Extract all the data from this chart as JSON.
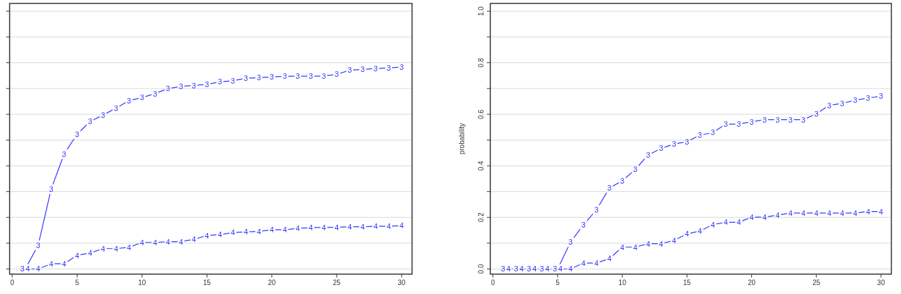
{
  "chart_data": [
    {
      "type": "line",
      "x": [
        1,
        2,
        3,
        4,
        5,
        6,
        7,
        8,
        9,
        10,
        11,
        12,
        13,
        14,
        15,
        16,
        17,
        18,
        19,
        20,
        21,
        22,
        23,
        24,
        25,
        26,
        27,
        28,
        29,
        30
      ],
      "xlim": [
        -0.2,
        30.8
      ],
      "xticks": [
        0,
        5,
        10,
        15,
        20,
        25,
        30
      ],
      "ylim": [
        -0.02,
        1.03
      ],
      "yticks": [
        {
          "value": 0,
          "label": null
        },
        {
          "value": 0.1,
          "label": null
        },
        {
          "value": 0.2,
          "label": null
        },
        {
          "value": 0.3,
          "label": null
        },
        {
          "value": 0.4,
          "label": null
        },
        {
          "value": 0.5,
          "label": null
        },
        {
          "value": 0.6,
          "label": null
        },
        {
          "value": 0.7,
          "label": null
        },
        {
          "value": 0.8,
          "label": null
        },
        {
          "value": 0.9,
          "label": null
        },
        {
          "value": 1,
          "label": null
        }
      ],
      "tick_labels": "x",
      "grid": "y",
      "marker": "none",
      "line_style": "solid",
      "series": [
        {
          "name": "3",
          "color": "#3333ff",
          "values": [
            0,
            0.092,
            0.31,
            0.446,
            0.523,
            0.572,
            0.597,
            0.624,
            0.653,
            0.665,
            0.68,
            0.7,
            0.708,
            0.712,
            0.716,
            0.726,
            0.73,
            0.74,
            0.742,
            0.745,
            0.747,
            0.748,
            0.748,
            0.748,
            0.755,
            0.771,
            0.774,
            0.778,
            0.78,
            0.783
          ]
        },
        {
          "name": "4",
          "color": "#3333ff",
          "values": [
            0,
            0,
            0.02,
            0.02,
            0.053,
            0.062,
            0.079,
            0.079,
            0.084,
            0.103,
            0.103,
            0.106,
            0.106,
            0.115,
            0.13,
            0.133,
            0.141,
            0.144,
            0.146,
            0.152,
            0.152,
            0.158,
            0.16,
            0.162,
            0.162,
            0.164,
            0.164,
            0.166,
            0.166,
            0.168
          ]
        }
      ]
    },
    {
      "type": "line",
      "ylabel": "probability",
      "x": [
        1,
        2,
        3,
        4,
        5,
        6,
        7,
        8,
        9,
        10,
        11,
        12,
        13,
        14,
        15,
        16,
        17,
        18,
        19,
        20,
        21,
        22,
        23,
        24,
        25,
        26,
        27,
        28,
        29,
        30
      ],
      "xlim": [
        -0.2,
        30.8
      ],
      "xticks": [
        0,
        5,
        10,
        15,
        20,
        25,
        30
      ],
      "ylim": [
        -0.02,
        1.03
      ],
      "yticks": [
        {
          "value": 0,
          "label": "0.0"
        },
        {
          "value": 0.1,
          "label": null
        },
        {
          "value": 0.2,
          "label": "0.2"
        },
        {
          "value": 0.3,
          "label": null
        },
        {
          "value": 0.4,
          "label": "0.4"
        },
        {
          "value": 0.5,
          "label": null
        },
        {
          "value": 0.6,
          "label": "0.6"
        },
        {
          "value": 0.7,
          "label": null
        },
        {
          "value": 0.8,
          "label": "0.8"
        },
        {
          "value": 0.9,
          "label": null
        },
        {
          "value": 1,
          "label": "1.0"
        }
      ],
      "grid": "y",
      "marker": "none",
      "line_style": "solid",
      "series": [
        {
          "name": "3",
          "color": "#3333ff",
          "values": [
            0,
            0,
            0,
            0,
            0,
            0.104,
            0.172,
            0.229,
            0.314,
            0.342,
            0.386,
            0.442,
            0.468,
            0.484,
            0.494,
            0.519,
            0.529,
            0.562,
            0.562,
            0.571,
            0.579,
            0.579,
            0.579,
            0.579,
            0.602,
            0.635,
            0.642,
            0.655,
            0.663,
            0.67
          ]
        },
        {
          "name": "4",
          "color": "#3333ff",
          "values": [
            0,
            0,
            0,
            0,
            0,
            0,
            0.023,
            0.023,
            0.04,
            0.085,
            0.085,
            0.098,
            0.098,
            0.111,
            0.136,
            0.147,
            0.172,
            0.181,
            0.181,
            0.201,
            0.201,
            0.209,
            0.217,
            0.217,
            0.217,
            0.217,
            0.217,
            0.217,
            0.223,
            0.223
          ]
        }
      ]
    }
  ]
}
